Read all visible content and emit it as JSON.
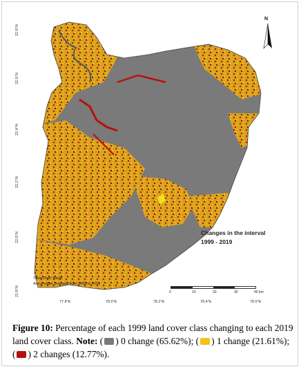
{
  "map": {
    "latitude_ticks": [
      "22.8°N",
      "22.6°N",
      "22.4°N",
      "22.2°N",
      "22.0°N",
      "21.8°N"
    ],
    "longitude_ticks": [
      "77.8°E",
      "78.0°E",
      "78.2°E",
      "78.4°E",
      "78.6°E"
    ],
    "north_label": "N",
    "inset_title_line1": "Changes in the interval",
    "inset_title_line2": "1999 - 2019",
    "basin_name": "Tawa River Basin",
    "basin_subtitle": "Accumulate changes from 1999 to 2019",
    "scale_labels": [
      "0",
      "10",
      "20",
      "30",
      "40 km"
    ],
    "colors": {
      "no_change": "#7a7a7a",
      "one_change": "#f2c21a",
      "two_changes": "#b3120c"
    }
  },
  "caption": {
    "figure_label": "Figure 10:",
    "text_part1": " Percentage of each 1999 land cover class changing to each 2019 land cover class. ",
    "note_label": "Note:",
    "legend": [
      {
        "label": "0 change (65.62%);",
        "color": "#7a7a7a"
      },
      {
        "label": "1 change (21.61%);",
        "color": "#f2c21a"
      },
      {
        "label": "2 changes (12.77%).",
        "color": "#b3120c"
      }
    ]
  }
}
